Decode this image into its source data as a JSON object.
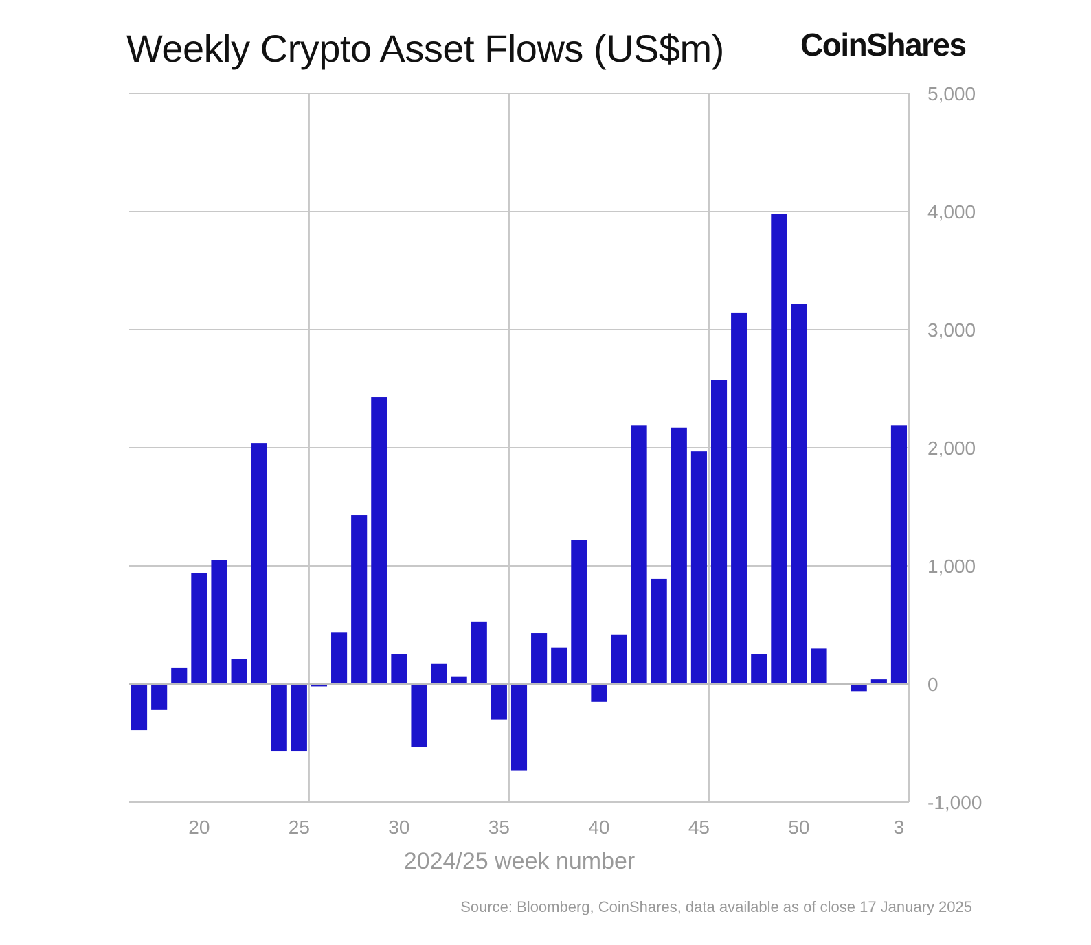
{
  "chart_data": {
    "type": "bar",
    "title": "Weekly Crypto Asset Flows (US$m)",
    "brand": "CoinShares",
    "source": "Source: Bloomberg, CoinShares, data available as of close 17 January 2025",
    "xlabel": "2024/25 week number",
    "ylabel": "",
    "ylim": [
      -1000,
      5000
    ],
    "yticks": [
      -1000,
      0,
      1000,
      2000,
      3000,
      4000,
      5000
    ],
    "ytick_labels": [
      "-1,000",
      "0",
      "1,000",
      "2,000",
      "3,000",
      "4,000",
      "5,000"
    ],
    "y_axis_side": "right",
    "xtick_labels": [
      "20",
      "25",
      "30",
      "35",
      "40",
      "45",
      "50",
      "3"
    ],
    "grid": true,
    "bar_color": "#1c14cc",
    "categories": [
      "17",
      "18",
      "19",
      "20",
      "21",
      "22",
      "23",
      "24",
      "25",
      "26",
      "27",
      "28",
      "29",
      "30",
      "31",
      "32",
      "33",
      "34",
      "35",
      "36",
      "37",
      "38",
      "39",
      "40",
      "41",
      "42",
      "43",
      "44",
      "45",
      "46",
      "47",
      "48",
      "49",
      "50",
      "51",
      "52",
      "1",
      "2",
      "3"
    ],
    "values": [
      -390,
      -220,
      140,
      940,
      1050,
      210,
      2040,
      -570,
      -570,
      -20,
      440,
      1430,
      2430,
      250,
      -530,
      170,
      60,
      530,
      -300,
      -730,
      430,
      310,
      1220,
      -150,
      420,
      2190,
      890,
      2170,
      1970,
      2570,
      3140,
      250,
      3980,
      3220,
      300,
      10,
      -60,
      40,
      2190
    ]
  }
}
